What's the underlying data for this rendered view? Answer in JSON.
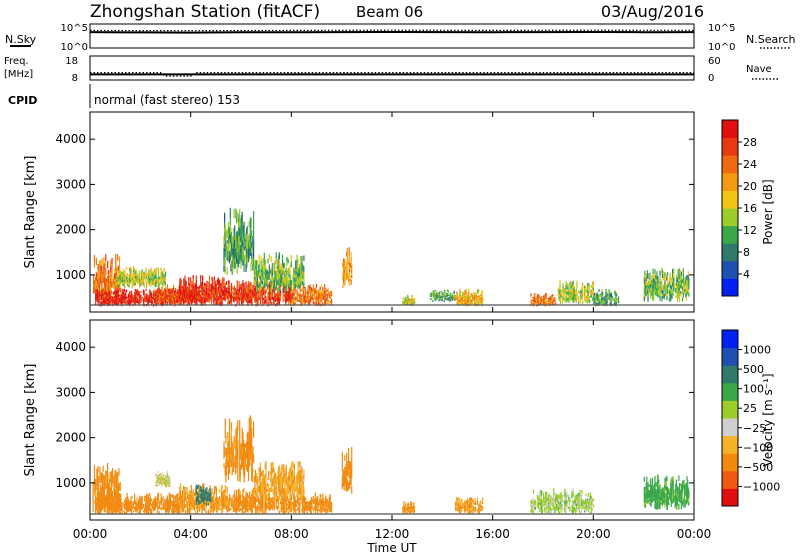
{
  "header": {
    "station": "Zhongshan Station (fitACF)",
    "beam": "Beam 06",
    "date": "03/Aug/2016"
  },
  "noise_panel": {
    "left_label": "N.Sky",
    "left_ticks": [
      "10^5",
      "10^0"
    ],
    "right_label": "N.Search",
    "right_ticks": [
      "10^5",
      "10^0"
    ]
  },
  "freq_panel": {
    "left_label_line1": "Freq.",
    "left_label_line2": "[MHz]",
    "left_ticks": [
      "18",
      "8"
    ],
    "right_label": "Nave",
    "right_ticks": [
      "60",
      "0"
    ]
  },
  "cpid": {
    "label": "CPID",
    "value": "normal (fast stereo) 153"
  },
  "power_panel": {
    "ylabel": "Slant Range [km]",
    "colorbar_label": "Power [dB]",
    "colorbar_ticks": [
      "28",
      "24",
      "20",
      "16",
      "12",
      "8",
      "4"
    ]
  },
  "velocity_panel": {
    "ylabel": "Slant Range [km]",
    "colorbar_label": "Velocity [m s⁻¹]",
    "colorbar_ticks": [
      "1000",
      "500",
      "100",
      "25",
      "−25",
      "−100",
      "−500",
      "−1000"
    ]
  },
  "xaxis": {
    "label": "Time UT",
    "ticks": [
      "00:00",
      "04:00",
      "08:00",
      "12:00",
      "16:00",
      "20:00",
      "00:00"
    ]
  },
  "colors": {
    "power_scale": [
      "#0022ee",
      "#1f4fb0",
      "#2f7a6a",
      "#3aa84a",
      "#9ccd2a",
      "#f2c418",
      "#f39a10",
      "#ef6a10",
      "#e83a10",
      "#e01010"
    ],
    "velocity_scale": [
      "#e01010",
      "#f05a10",
      "#f28a10",
      "#f4b228",
      "#cfcfcf",
      "#9ccd2a",
      "#3aa84a",
      "#2f7a6a",
      "#1f4fb0",
      "#0022ee"
    ]
  },
  "chart_data": [
    {
      "type": "line",
      "title": "Zhongshan Station (fitACF)  Beam 06  03/Aug/2016",
      "panel": "noise",
      "x_range_hours": [
        0,
        24
      ],
      "series": [
        {
          "name": "N.Sky",
          "x": [
            0,
            2,
            4,
            6,
            8,
            10,
            12,
            14,
            16,
            18,
            20,
            22,
            24
          ],
          "y": [
            3000,
            2500,
            2200,
            2600,
            2800,
            3000,
            3200,
            3000,
            2800,
            3000,
            3100,
            2900,
            3000
          ]
        },
        {
          "name": "N.Search",
          "x": [
            0,
            2,
            4,
            6,
            8,
            10,
            12,
            14,
            16,
            18,
            20,
            22,
            24
          ],
          "y": [
            8000,
            7000,
            6500,
            7500,
            8000,
            8500,
            9000,
            8500,
            8000,
            8500,
            9000,
            8200,
            8500
          ]
        }
      ],
      "ylim": [
        "10^0",
        "10^5"
      ]
    },
    {
      "type": "line",
      "panel": "frequency",
      "x_range_hours": [
        0,
        24
      ],
      "series": [
        {
          "name": "Freq.",
          "x": [
            0,
            24
          ],
          "y": [
            10,
            10
          ]
        },
        {
          "name": "Nave",
          "x": [
            0,
            2.8,
            3.0,
            4.0,
            4.2,
            24
          ],
          "y": [
            18,
            18,
            6,
            6,
            18,
            18
          ]
        }
      ],
      "ylim_left": [
        8,
        18
      ],
      "ylim_right": [
        0,
        60
      ]
    },
    {
      "type": "heatmap",
      "panel": "power",
      "xlabel": "Time UT",
      "ylabel": "Slant Range [km]",
      "x_range_hours": [
        0,
        24
      ],
      "ylim": [
        180,
        4600
      ],
      "zlim": [
        0,
        30
      ],
      "colorbar_label": "Power [dB]",
      "regions": [
        {
          "t0": 0.1,
          "t1": 1.2,
          "r0": 300,
          "r1": 1500,
          "value": 22
        },
        {
          "t0": 0.2,
          "t1": 3.5,
          "r0": 300,
          "r1": 700,
          "value": 28
        },
        {
          "t0": 1.0,
          "t1": 3.0,
          "r0": 700,
          "r1": 1200,
          "value": 14
        },
        {
          "t0": 2.5,
          "t1": 4.5,
          "r0": 350,
          "r1": 800,
          "value": 24
        },
        {
          "t0": 3.5,
          "t1": 5.5,
          "r0": 300,
          "r1": 1000,
          "value": 27
        },
        {
          "t0": 5.3,
          "t1": 6.5,
          "r0": 1000,
          "r1": 2500,
          "value": 10
        },
        {
          "t0": 5.5,
          "t1": 8.0,
          "r0": 300,
          "r1": 900,
          "value": 26
        },
        {
          "t0": 6.5,
          "t1": 8.5,
          "r0": 600,
          "r1": 1500,
          "value": 12
        },
        {
          "t0": 8.0,
          "t1": 9.6,
          "r0": 300,
          "r1": 800,
          "value": 22
        },
        {
          "t0": 10.0,
          "t1": 10.4,
          "r0": 700,
          "r1": 1800,
          "value": 20
        },
        {
          "t0": 12.4,
          "t1": 12.9,
          "r0": 300,
          "r1": 600,
          "value": 15
        },
        {
          "t0": 13.5,
          "t1": 14.5,
          "r0": 400,
          "r1": 700,
          "value": 10
        },
        {
          "t0": 14.5,
          "t1": 15.6,
          "r0": 300,
          "r1": 700,
          "value": 18
        },
        {
          "t0": 17.5,
          "t1": 18.5,
          "r0": 300,
          "r1": 600,
          "value": 22
        },
        {
          "t0": 18.5,
          "t1": 20.0,
          "r0": 350,
          "r1": 900,
          "value": 14
        },
        {
          "t0": 20.0,
          "t1": 21.0,
          "r0": 300,
          "r1": 700,
          "value": 10
        },
        {
          "t0": 22.0,
          "t1": 23.8,
          "r0": 400,
          "r1": 1200,
          "value": 12
        }
      ]
    },
    {
      "type": "heatmap",
      "panel": "velocity",
      "xlabel": "Time UT",
      "ylabel": "Slant Range [km]",
      "x_range_hours": [
        0,
        24
      ],
      "ylim": [
        180,
        4600
      ],
      "zlim": [
        -1000,
        1000
      ],
      "colorbar_label": "Velocity [m s⁻¹]",
      "regions": [
        {
          "t0": 0.1,
          "t1": 1.2,
          "r0": 300,
          "r1": 1500,
          "value": -150
        },
        {
          "t0": 0.2,
          "t1": 3.5,
          "r0": 300,
          "r1": 800,
          "value": -200
        },
        {
          "t0": 2.6,
          "t1": 3.2,
          "r0": 900,
          "r1": 1300,
          "value": 5
        },
        {
          "t0": 3.5,
          "t1": 5.5,
          "r0": 300,
          "r1": 1000,
          "value": -120
        },
        {
          "t0": 4.2,
          "t1": 4.8,
          "r0": 500,
          "r1": 1000,
          "value": 600
        },
        {
          "t0": 5.3,
          "t1": 6.5,
          "r0": 1000,
          "r1": 2500,
          "value": -150
        },
        {
          "t0": 5.5,
          "t1": 8.0,
          "r0": 300,
          "r1": 900,
          "value": -150
        },
        {
          "t0": 6.5,
          "t1": 8.5,
          "r0": 600,
          "r1": 1500,
          "value": -80
        },
        {
          "t0": 8.0,
          "t1": 9.6,
          "r0": 300,
          "r1": 800,
          "value": -150
        },
        {
          "t0": 10.0,
          "t1": 10.4,
          "r0": 700,
          "r1": 1800,
          "value": -300
        },
        {
          "t0": 12.4,
          "t1": 12.9,
          "r0": 300,
          "r1": 600,
          "value": -150
        },
        {
          "t0": 14.5,
          "t1": 15.6,
          "r0": 300,
          "r1": 700,
          "value": -120
        },
        {
          "t0": 17.5,
          "t1": 20.0,
          "r0": 300,
          "r1": 900,
          "value": 50
        },
        {
          "t0": 22.0,
          "t1": 23.8,
          "r0": 400,
          "r1": 1200,
          "value": 150
        }
      ]
    }
  ]
}
